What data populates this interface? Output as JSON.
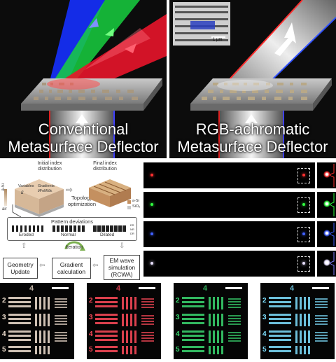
{
  "top_left_caption": [
    "Conventional",
    "Metasurface Deflector"
  ],
  "top_right_caption": [
    "RGB-achromatic",
    "Metasurface Deflector"
  ],
  "sem_scale_label": "1 µm",
  "topology": {
    "initial_title": [
      "Initial index",
      "distribution"
    ],
    "final_title": [
      "Final index",
      "distribution"
    ],
    "axis_top": "a-Si",
    "axis_bottom": "air",
    "variables_label": "Variables",
    "variables_symbol": "ε",
    "gradients_label": "Gradients",
    "gradients_symbol": "∂FoM/∂ε",
    "topology_label": [
      "Topology",
      "optimization"
    ],
    "legend": [
      "a-Si",
      "SiO₂"
    ],
    "pattern_title": "Pattern deviations",
    "pattern_labels": [
      "Eroded",
      "Normal",
      "Dilated"
    ],
    "pattern_side": [
      "ER",
      "NR",
      "DR"
    ],
    "iteration_label": "Iteration",
    "geometry_update": [
      "Geometry",
      "Update"
    ],
    "gradient_calc": [
      "Gradient",
      "calculation"
    ],
    "em_wave": [
      "EM wave",
      "simulation",
      "(RCWA)"
    ]
  },
  "focal_rows": [
    {
      "color": "red",
      "hex": "#ff3030"
    },
    {
      "color": "green",
      "hex": "#30ff40"
    },
    {
      "color": "blue",
      "hex": "#4060ff"
    },
    {
      "color": "white",
      "hex": "#e8e0ff"
    }
  ],
  "usaf_panels": [
    {
      "name": "white",
      "tint": "#f0e0d0",
      "labels": [
        "2",
        "3",
        "4",
        "5"
      ],
      "top_label": "4"
    },
    {
      "name": "red",
      "tint": "#ff4a5a",
      "labels": [
        "2",
        "3",
        "4",
        "5"
      ],
      "top_label": "4"
    },
    {
      "name": "green",
      "tint": "#3ad870",
      "labels": [
        "2",
        "3",
        "4",
        "5"
      ],
      "top_label": "4"
    },
    {
      "name": "blue",
      "tint": "#7ee0ff",
      "labels": [
        "2",
        "3",
        "4",
        "5"
      ],
      "top_label": "4"
    }
  ]
}
